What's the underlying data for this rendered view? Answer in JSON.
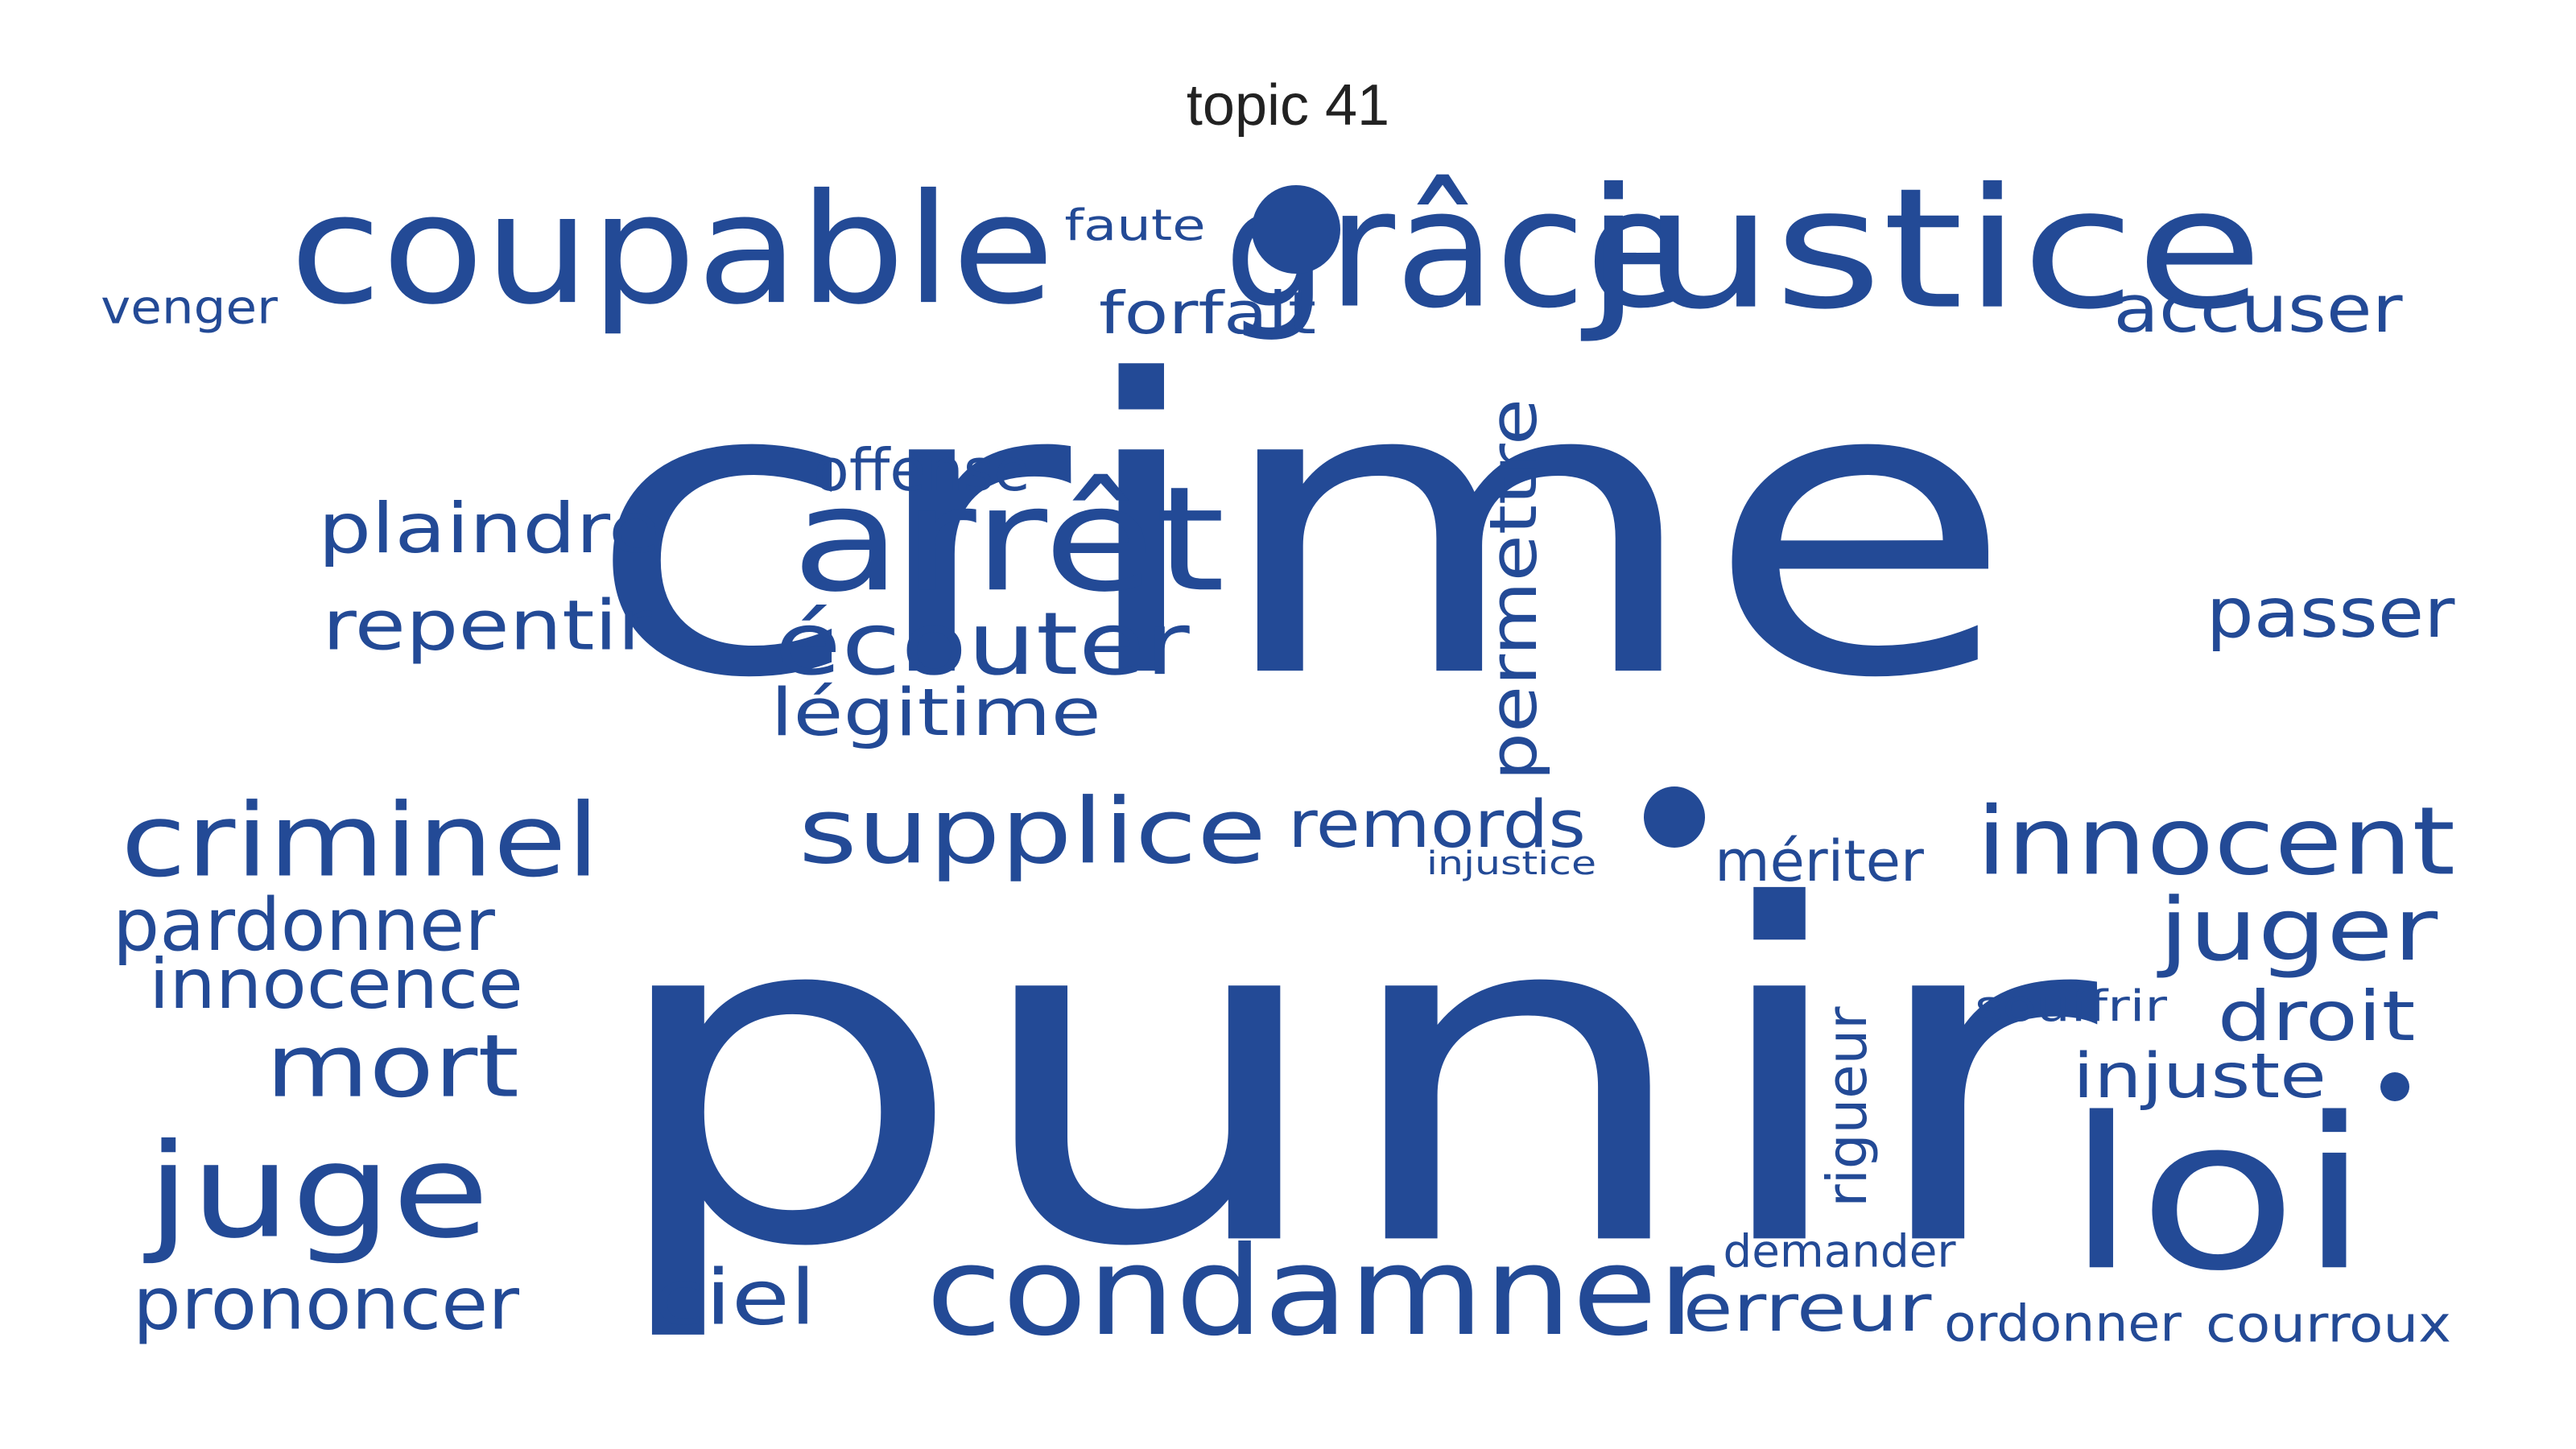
{
  "title": "topic 41",
  "colors": {
    "word": "#234a96",
    "title": "#222222",
    "background": "#ffffff"
  },
  "words": [
    {
      "text": "crime"
    },
    {
      "text": "punir"
    },
    {
      "text": "coupable"
    },
    {
      "text": "grâce"
    },
    {
      "text": "justice"
    },
    {
      "text": "faute"
    },
    {
      "text": "forfait"
    },
    {
      "text": "venger"
    },
    {
      "text": "accuser"
    },
    {
      "text": "offense"
    },
    {
      "text": "arrêt"
    },
    {
      "text": "plaindre"
    },
    {
      "text": "repentir"
    },
    {
      "text": "écouter"
    },
    {
      "text": "légitime"
    },
    {
      "text": "permettre"
    },
    {
      "text": "passer"
    },
    {
      "text": "criminel"
    },
    {
      "text": "supplice"
    },
    {
      "text": "remords"
    },
    {
      "text": "injustice"
    },
    {
      "text": "mériter"
    },
    {
      "text": "innocent"
    },
    {
      "text": "juger"
    },
    {
      "text": "pardonner"
    },
    {
      "text": "innocence"
    },
    {
      "text": "souffrir"
    },
    {
      "text": "droit"
    },
    {
      "text": "mort"
    },
    {
      "text": "injuste"
    },
    {
      "text": "rigueur"
    },
    {
      "text": "juge"
    },
    {
      "text": "loi"
    },
    {
      "text": "demander"
    },
    {
      "text": "prononcer"
    },
    {
      "text": "ciel"
    },
    {
      "text": "condamner"
    },
    {
      "text": "erreur"
    },
    {
      "text": "ordonner"
    },
    {
      "text": "courroux"
    }
  ]
}
